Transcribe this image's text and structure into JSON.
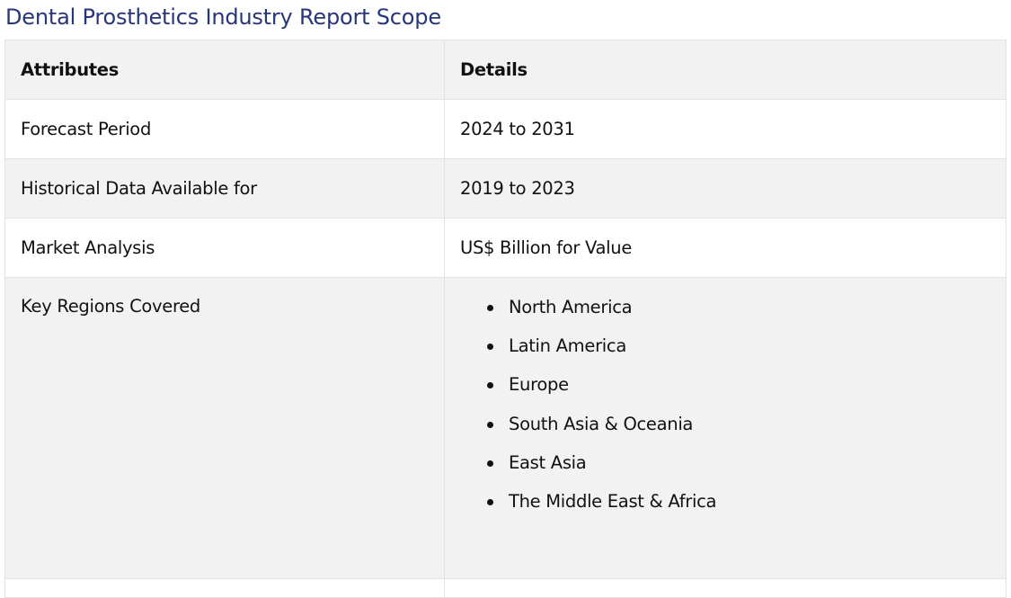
{
  "title": "Dental Prosthetics Industry Report Scope",
  "table": {
    "headers": [
      "Attributes",
      "Details"
    ],
    "rows": [
      {
        "attribute": "Forecast Period",
        "detail": "2024 to 2031"
      },
      {
        "attribute": "Historical Data Available for",
        "detail": "2019 to 2023"
      },
      {
        "attribute": "Market Analysis",
        "detail": "US$ Billion for Value"
      }
    ],
    "regions": {
      "attribute": "Key Regions Covered",
      "items": [
        "North America",
        "Latin America",
        "Europe",
        "South Asia & Oceania",
        "East Asia",
        "The Middle East & Africa"
      ]
    }
  },
  "colors": {
    "title": "#27367a",
    "header_bg": "#f2f2f2",
    "stripe_bg": "#f2f2f2",
    "border": "#e2e2e2"
  }
}
